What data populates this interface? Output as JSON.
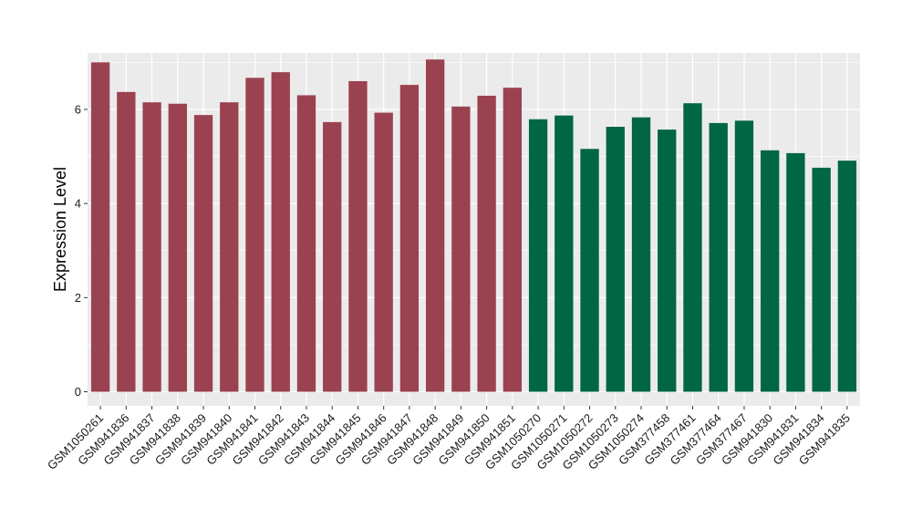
{
  "chart_data": {
    "type": "bar",
    "title": "",
    "xlabel": "",
    "ylabel": "Expression Level",
    "ylim": [
      -0.3,
      7.2
    ],
    "yticks": [
      0,
      2,
      4,
      6
    ],
    "grid": true,
    "categories": [
      "GSM1050261",
      "GSM941836",
      "GSM941837",
      "GSM941838",
      "GSM941839",
      "GSM941840",
      "GSM941841",
      "GSM941842",
      "GSM941843",
      "GSM941844",
      "GSM941845",
      "GSM941846",
      "GSM941847",
      "GSM941848",
      "GSM941849",
      "GSM941850",
      "GSM941851",
      "GSM1050270",
      "GSM1050271",
      "GSM1050272",
      "GSM1050273",
      "GSM1050274",
      "GSM377458",
      "GSM377461",
      "GSM377464",
      "GSM377467",
      "GSM941830",
      "GSM941831",
      "GSM941834",
      "GSM941835"
    ],
    "values": [
      7.0,
      6.37,
      6.15,
      6.12,
      5.88,
      6.15,
      6.67,
      6.79,
      6.3,
      5.73,
      6.6,
      5.93,
      6.52,
      7.06,
      6.06,
      6.29,
      6.46,
      5.79,
      5.87,
      5.16,
      5.63,
      5.83,
      5.57,
      6.13,
      5.71,
      5.76,
      5.13,
      5.07,
      4.76,
      4.91
    ],
    "bar_colors": [
      "#9b4250",
      "#9b4250",
      "#9b4250",
      "#9b4250",
      "#9b4250",
      "#9b4250",
      "#9b4250",
      "#9b4250",
      "#9b4250",
      "#9b4250",
      "#9b4250",
      "#9b4250",
      "#9b4250",
      "#9b4250",
      "#9b4250",
      "#9b4250",
      "#9b4250",
      "#006643",
      "#006643",
      "#006643",
      "#006643",
      "#006643",
      "#006643",
      "#006643",
      "#006643",
      "#006643",
      "#006643",
      "#006643",
      "#006643",
      "#006643"
    ],
    "panel_background": "#ebebeb",
    "grid_color": "#ffffff"
  }
}
